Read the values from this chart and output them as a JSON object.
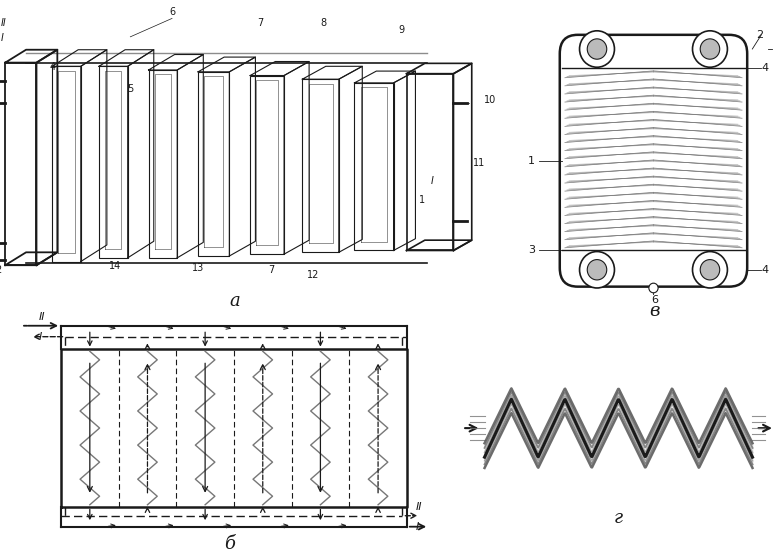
{
  "bg_color": "#ffffff",
  "line_color": "#1a1a1a",
  "gray_color": "#777777",
  "light_gray": "#aaaaaa",
  "label_a": "а",
  "label_b": "б",
  "label_v": "в",
  "label_g": "г",
  "fig_width": 7.78,
  "fig_height": 5.56
}
